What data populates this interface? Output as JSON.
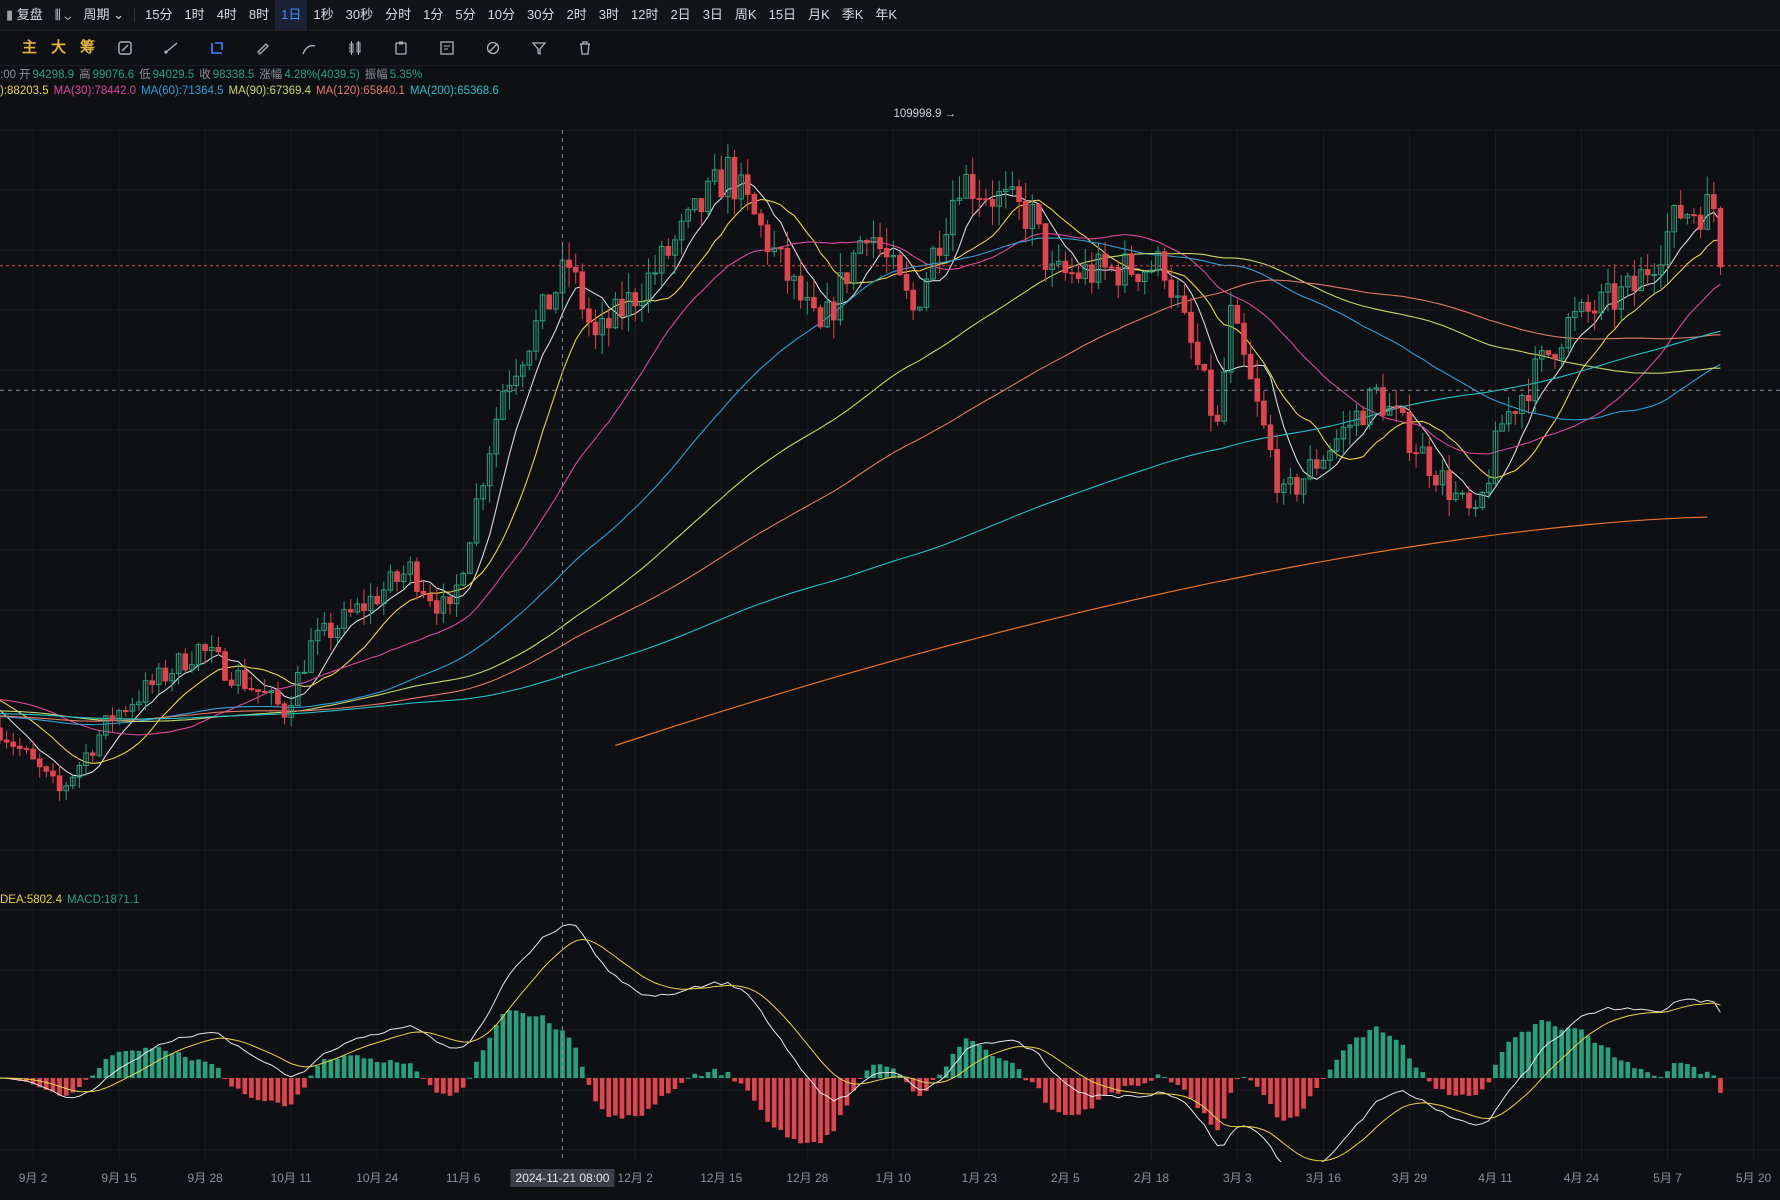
{
  "topbar": {
    "replay": "复盘",
    "period_menu": "周期",
    "intervals": [
      {
        "label": "15分",
        "active": false
      },
      {
        "label": "1时",
        "active": false
      },
      {
        "label": "4时",
        "active": false
      },
      {
        "label": "8时",
        "active": false
      },
      {
        "label": "1日",
        "active": true
      },
      {
        "label": "1秒",
        "active": false
      },
      {
        "label": "30秒",
        "active": false
      },
      {
        "label": "分时",
        "active": false
      },
      {
        "label": "1分",
        "active": false
      },
      {
        "label": "5分",
        "active": false
      },
      {
        "label": "10分",
        "active": false
      },
      {
        "label": "30分",
        "active": false
      },
      {
        "label": "2时",
        "active": false
      },
      {
        "label": "3时",
        "active": false
      },
      {
        "label": "12时",
        "active": false
      },
      {
        "label": "2日",
        "active": false
      },
      {
        "label": "3日",
        "active": false
      },
      {
        "label": "周K",
        "active": false
      },
      {
        "label": "15日",
        "active": false
      },
      {
        "label": "月K",
        "active": false
      },
      {
        "label": "季K",
        "active": false
      },
      {
        "label": "年K",
        "active": false
      }
    ]
  },
  "toolbar": {
    "main_label": "主",
    "big_label": "大",
    "chip_label": "筹",
    "icons": [
      "indicator-edit-icon",
      "draw-line-icon",
      "crosshair-select-icon",
      "ruler-icon",
      "pen-icon",
      "candle-pattern-icon",
      "clipboard-icon",
      "note-icon",
      "magic-icon",
      "filter-icon",
      "trash-icon"
    ]
  },
  "ohlc_legend": {
    "prefix": ":00",
    "open_label": "开",
    "open": "94298.9",
    "high_label": "高",
    "high": "99076.6",
    "low_label": "低",
    "low": "94029.5",
    "close_label": "收",
    "close": "98338.5",
    "change_label": "涨幅",
    "change": "4.28%(4039.5)",
    "amplitude_label": "振幅",
    "amplitude": "5.35%"
  },
  "ma_legend": [
    {
      "text": "):88203.5",
      "color": "#e8d44d"
    },
    {
      "text": "MA(30):78442.0",
      "color": "#d9479d"
    },
    {
      "text": "MA(60):71364.5",
      "color": "#2f9fd8"
    },
    {
      "text": "MA(90):67369.4",
      "color": "#c8d66a"
    },
    {
      "text": "MA(120):65840.1",
      "color": "#e07a6a"
    },
    {
      "text": "MA(200):65368.6",
      "color": "#22c1c8"
    }
  ],
  "macd_legend": [
    {
      "text": "DEA:5802.4",
      "color": "#e8d44d"
    },
    {
      "text": "MACD:1871.1",
      "color": "#26a17b"
    }
  ],
  "max_marker": "109998.9",
  "crosshair_date": "2024-11-21 08:00",
  "colors": {
    "up": "#26a17b",
    "down": "#e0454f",
    "bg": "#0f1013",
    "grid": "#1b1d22"
  },
  "chart_data": {
    "type": "candlestick",
    "x_ticks": [
      "9月 2",
      "9月 15",
      "9月 28",
      "10月 11",
      "10月 24",
      "11月 6",
      "2024-11-21 08:00",
      "12月 2",
      "12月 15",
      "12月 28",
      "1月 10",
      "1月 23",
      "2月 5",
      "2月 18",
      "3月 3",
      "3月 16",
      "3月 29",
      "4月 11",
      "4月 24",
      "5月 7",
      "5月 20"
    ],
    "highest": 109998.9,
    "last_close": 98338.5,
    "anchors": [
      {
        "date": "2024-08-28",
        "close": 59000
      },
      {
        "date": "2024-09-06",
        "close": 53500
      },
      {
        "date": "2024-09-14",
        "close": 60000
      },
      {
        "date": "2024-09-27",
        "close": 65800
      },
      {
        "date": "2024-10-10",
        "close": 60500
      },
      {
        "date": "2024-10-14",
        "close": 66000
      },
      {
        "date": "2024-10-29",
        "close": 72500
      },
      {
        "date": "2024-11-04",
        "close": 68500
      },
      {
        "date": "2024-11-12",
        "close": 88000
      },
      {
        "date": "2024-11-22",
        "close": 98500
      },
      {
        "date": "2024-11-26",
        "close": 92000
      },
      {
        "date": "2024-12-05",
        "close": 98000
      },
      {
        "date": "2024-12-16",
        "close": 106500
      },
      {
        "date": "2024-12-30",
        "close": 92500
      },
      {
        "date": "2025-01-06",
        "close": 102000
      },
      {
        "date": "2025-01-13",
        "close": 94500
      },
      {
        "date": "2025-01-20",
        "close": 106000
      },
      {
        "date": "2025-01-31",
        "close": 102500
      },
      {
        "date": "2025-02-03",
        "close": 97500
      },
      {
        "date": "2025-02-20",
        "close": 98500
      },
      {
        "date": "2025-02-28",
        "close": 84500
      },
      {
        "date": "2025-03-02",
        "close": 94000
      },
      {
        "date": "2025-03-10",
        "close": 78500
      },
      {
        "date": "2025-03-24",
        "close": 87500
      },
      {
        "date": "2025-04-08",
        "close": 76500
      },
      {
        "date": "2025-04-12",
        "close": 85000
      },
      {
        "date": "2025-04-22",
        "close": 93500
      },
      {
        "date": "2025-05-02",
        "close": 96500
      },
      {
        "date": "2025-05-09",
        "close": 103000
      },
      {
        "date": "2025-05-14",
        "close": 103500
      },
      {
        "date": "2025-05-15",
        "close": 98338.5
      }
    ],
    "moving_averages": [
      {
        "name": "MA(30)",
        "value": 78442.0
      },
      {
        "name": "MA(60)",
        "value": 71364.5
      },
      {
        "name": "MA(90)",
        "value": 67369.4
      },
      {
        "name": "MA(120)",
        "value": 65840.1
      },
      {
        "name": "MA(200)",
        "value": 65368.6
      }
    ],
    "macd": {
      "DEA": 5802.4,
      "MACD": 1871.1
    }
  }
}
